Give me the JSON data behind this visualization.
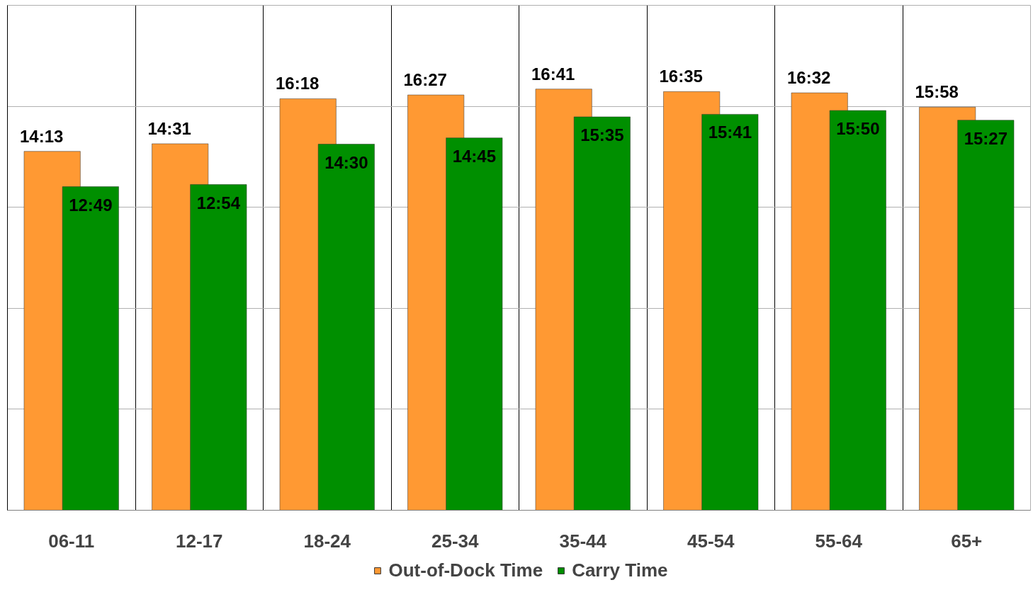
{
  "chart_data": {
    "type": "bar",
    "categories": [
      "06-11",
      "12-17",
      "18-24",
      "25-34",
      "35-44",
      "45-54",
      "55-64",
      "65+"
    ],
    "series": [
      {
        "name": "Out-of-Dock Time",
        "color": "#ff9933",
        "values": [
          14.2167,
          14.5167,
          16.3,
          16.45,
          16.6833,
          16.5833,
          16.5333,
          15.9667
        ],
        "value_labels": [
          "14:13",
          "14:31",
          "16:18",
          "16:27",
          "16:41",
          "16:35",
          "16:32",
          "15:58"
        ]
      },
      {
        "name": "Carry Time",
        "color": "#008f00",
        "values": [
          12.8167,
          12.9,
          14.5,
          14.75,
          15.5833,
          15.6833,
          15.8333,
          15.45
        ],
        "value_labels": [
          "12:49",
          "12:54",
          "14:30",
          "14:45",
          "15:35",
          "15:41",
          "15:50",
          "15:27"
        ]
      }
    ],
    "ylim": [
      0,
      20
    ],
    "yticks": [
      {
        "value": 0,
        "label": null
      },
      {
        "value": 4,
        "label": null
      },
      {
        "value": 8,
        "label": null
      },
      {
        "value": 12,
        "label": null
      },
      {
        "value": 16,
        "label": null
      }
    ],
    "tick_labels": "x",
    "grid": true,
    "legend": "bottom"
  }
}
